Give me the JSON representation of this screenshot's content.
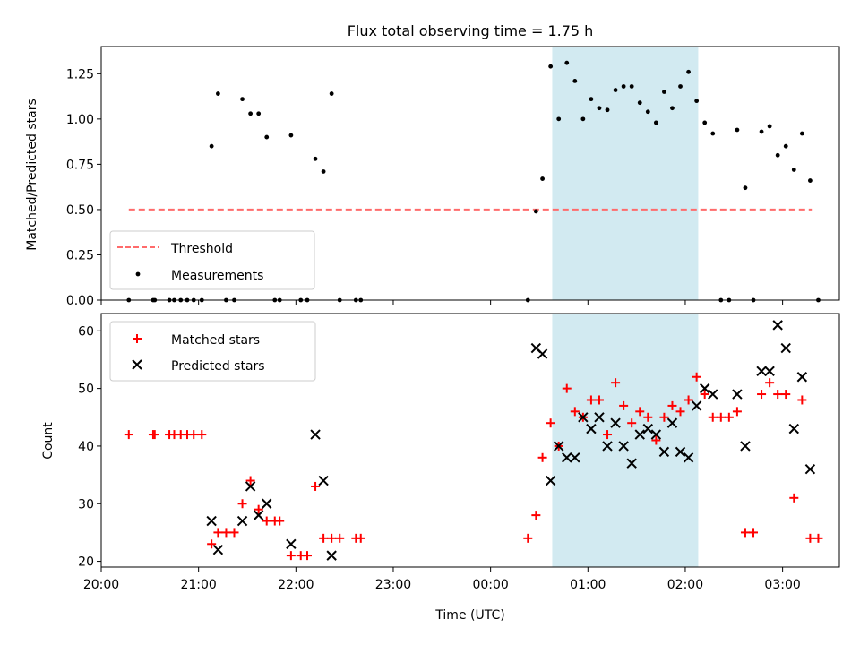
{
  "title": "Flux total observing time = 1.75 h",
  "colors": {
    "threshold": "#ff6b6b",
    "measurement": "#000000",
    "matched": "#ff0000",
    "predicted": "#000000",
    "span": "#add8e6"
  },
  "chart_data": [
    {
      "type": "scatter",
      "panel": "top",
      "title": "Flux total observing time = 1.75 h",
      "ylabel": "Matched/Predicted stars",
      "xlabel": "",
      "xlim": [
        "20:00",
        "03:35"
      ],
      "ylim": [
        0,
        1.4
      ],
      "yticks": [
        0.0,
        0.25,
        0.5,
        0.75,
        1.0,
        1.25
      ],
      "ytick_labels": [
        "0.00",
        "0.25",
        "0.50",
        "0.75",
        "1.00",
        "1.25"
      ],
      "legend_position": "lower-left",
      "legend": [
        "Threshold",
        "Measurements"
      ],
      "shaded_span": {
        "start": "00:38",
        "end": "02:08"
      },
      "threshold": {
        "name": "Threshold",
        "y": 0.5,
        "x_start": "20:17",
        "x_end": "03:18"
      },
      "series": [
        {
          "name": "Measurements",
          "points": [
            [
              "20:17",
              0.0
            ],
            [
              "20:32",
              0.0
            ],
            [
              "20:33",
              0.0
            ],
            [
              "20:42",
              0.0
            ],
            [
              "20:45",
              0.0
            ],
            [
              "20:49",
              0.0
            ],
            [
              "20:53",
              0.0
            ],
            [
              "20:57",
              0.0
            ],
            [
              "21:02",
              0.0
            ],
            [
              "21:08",
              0.85
            ],
            [
              "21:12",
              1.14
            ],
            [
              "21:17",
              0.0
            ],
            [
              "21:22",
              0.0
            ],
            [
              "21:27",
              1.11
            ],
            [
              "21:32",
              1.03
            ],
            [
              "21:37",
              1.03
            ],
            [
              "21:42",
              0.9
            ],
            [
              "21:47",
              0.0
            ],
            [
              "21:50",
              0.0
            ],
            [
              "21:57",
              0.91
            ],
            [
              "22:03",
              0.0
            ],
            [
              "22:07",
              0.0
            ],
            [
              "22:12",
              0.78
            ],
            [
              "22:17",
              0.71
            ],
            [
              "22:22",
              1.14
            ],
            [
              "22:27",
              0.0
            ],
            [
              "22:37",
              0.0
            ],
            [
              "22:40",
              0.0
            ],
            [
              "00:23",
              0.0
            ],
            [
              "00:28",
              0.49
            ],
            [
              "00:32",
              0.67
            ],
            [
              "00:37",
              1.29
            ],
            [
              "00:42",
              1.0
            ],
            [
              "00:47",
              1.31
            ],
            [
              "00:52",
              1.21
            ],
            [
              "00:57",
              1.0
            ],
            [
              "01:02",
              1.11
            ],
            [
              "01:07",
              1.06
            ],
            [
              "01:12",
              1.05
            ],
            [
              "01:17",
              1.16
            ],
            [
              "01:22",
              1.18
            ],
            [
              "01:27",
              1.18
            ],
            [
              "01:32",
              1.09
            ],
            [
              "01:37",
              1.04
            ],
            [
              "01:42",
              0.98
            ],
            [
              "01:47",
              1.15
            ],
            [
              "01:52",
              1.06
            ],
            [
              "01:57",
              1.18
            ],
            [
              "02:02",
              1.26
            ],
            [
              "02:07",
              1.1
            ],
            [
              "02:12",
              0.98
            ],
            [
              "02:17",
              0.92
            ],
            [
              "02:22",
              0.0
            ],
            [
              "02:27",
              0.0
            ],
            [
              "02:32",
              0.94
            ],
            [
              "02:37",
              0.62
            ],
            [
              "02:42",
              0.0
            ],
            [
              "02:47",
              0.93
            ],
            [
              "02:52",
              0.96
            ],
            [
              "02:57",
              0.8
            ],
            [
              "03:02",
              0.85
            ],
            [
              "03:07",
              0.72
            ],
            [
              "03:12",
              0.92
            ],
            [
              "03:17",
              0.66
            ],
            [
              "03:22",
              0.0
            ]
          ]
        }
      ]
    },
    {
      "type": "scatter",
      "panel": "bottom",
      "xlabel": "Time (UTC)",
      "ylabel": "Count",
      "xlim": [
        "20:00",
        "03:35"
      ],
      "ylim": [
        19,
        63
      ],
      "yticks": [
        20,
        30,
        40,
        50,
        60
      ],
      "ytick_labels": [
        "20",
        "30",
        "40",
        "50",
        "60"
      ],
      "xticks": [
        "20:00",
        "21:00",
        "22:00",
        "23:00",
        "00:00",
        "01:00",
        "02:00",
        "03:00"
      ],
      "legend_position": "upper-left",
      "legend": [
        "Matched stars",
        "Predicted stars"
      ],
      "shaded_span": {
        "start": "00:38",
        "end": "02:08"
      },
      "series": [
        {
          "name": "Matched stars",
          "marker": "+",
          "points": [
            [
              "20:17",
              42
            ],
            [
              "20:32",
              42
            ],
            [
              "20:33",
              42
            ],
            [
              "20:42",
              42
            ],
            [
              "20:45",
              42
            ],
            [
              "20:49",
              42
            ],
            [
              "20:53",
              42
            ],
            [
              "20:57",
              42
            ],
            [
              "21:02",
              42
            ],
            [
              "21:08",
              23
            ],
            [
              "21:12",
              25
            ],
            [
              "21:17",
              25
            ],
            [
              "21:22",
              25
            ],
            [
              "21:27",
              30
            ],
            [
              "21:32",
              34
            ],
            [
              "21:37",
              29
            ],
            [
              "21:42",
              27
            ],
            [
              "21:47",
              27
            ],
            [
              "21:50",
              27
            ],
            [
              "21:57",
              21
            ],
            [
              "22:03",
              21
            ],
            [
              "22:07",
              21
            ],
            [
              "22:12",
              33
            ],
            [
              "22:17",
              24
            ],
            [
              "22:22",
              24
            ],
            [
              "22:27",
              24
            ],
            [
              "22:37",
              24
            ],
            [
              "22:40",
              24
            ],
            [
              "00:23",
              24
            ],
            [
              "00:28",
              28
            ],
            [
              "00:32",
              38
            ],
            [
              "00:37",
              44
            ],
            [
              "00:42",
              40
            ],
            [
              "00:47",
              50
            ],
            [
              "00:52",
              46
            ],
            [
              "00:57",
              45
            ],
            [
              "01:02",
              48
            ],
            [
              "01:07",
              48
            ],
            [
              "01:12",
              42
            ],
            [
              "01:17",
              51
            ],
            [
              "01:22",
              47
            ],
            [
              "01:27",
              44
            ],
            [
              "01:32",
              46
            ],
            [
              "01:37",
              45
            ],
            [
              "01:42",
              41
            ],
            [
              "01:47",
              45
            ],
            [
              "01:52",
              47
            ],
            [
              "01:57",
              46
            ],
            [
              "02:02",
              48
            ],
            [
              "02:07",
              52
            ],
            [
              "02:12",
              49
            ],
            [
              "02:17",
              45
            ],
            [
              "02:22",
              45
            ],
            [
              "02:27",
              45
            ],
            [
              "02:32",
              46
            ],
            [
              "02:37",
              25
            ],
            [
              "02:42",
              25
            ],
            [
              "02:47",
              49
            ],
            [
              "02:52",
              51
            ],
            [
              "02:57",
              49
            ],
            [
              "03:02",
              49
            ],
            [
              "03:07",
              31
            ],
            [
              "03:12",
              48
            ],
            [
              "03:17",
              24
            ],
            [
              "03:22",
              24
            ]
          ]
        },
        {
          "name": "Predicted stars",
          "marker": "x",
          "points": [
            [
              "21:08",
              27
            ],
            [
              "21:12",
              22
            ],
            [
              "21:27",
              27
            ],
            [
              "21:32",
              33
            ],
            [
              "21:37",
              28
            ],
            [
              "21:42",
              30
            ],
            [
              "21:57",
              23
            ],
            [
              "22:12",
              42
            ],
            [
              "22:17",
              34
            ],
            [
              "22:22",
              21
            ],
            [
              "00:28",
              57
            ],
            [
              "00:32",
              56
            ],
            [
              "00:37",
              34
            ],
            [
              "00:42",
              40
            ],
            [
              "00:47",
              38
            ],
            [
              "00:52",
              38
            ],
            [
              "00:57",
              45
            ],
            [
              "01:02",
              43
            ],
            [
              "01:07",
              45
            ],
            [
              "01:12",
              40
            ],
            [
              "01:17",
              44
            ],
            [
              "01:22",
              40
            ],
            [
              "01:27",
              37
            ],
            [
              "01:32",
              42
            ],
            [
              "01:37",
              43
            ],
            [
              "01:42",
              42
            ],
            [
              "01:47",
              39
            ],
            [
              "01:52",
              44
            ],
            [
              "01:57",
              39
            ],
            [
              "02:02",
              38
            ],
            [
              "02:07",
              47
            ],
            [
              "02:12",
              50
            ],
            [
              "02:17",
              49
            ],
            [
              "02:32",
              49
            ],
            [
              "02:37",
              40
            ],
            [
              "02:47",
              53
            ],
            [
              "02:52",
              53
            ],
            [
              "02:57",
              61
            ],
            [
              "03:02",
              57
            ],
            [
              "03:07",
              43
            ],
            [
              "03:12",
              52
            ],
            [
              "03:17",
              36
            ]
          ]
        }
      ]
    }
  ]
}
